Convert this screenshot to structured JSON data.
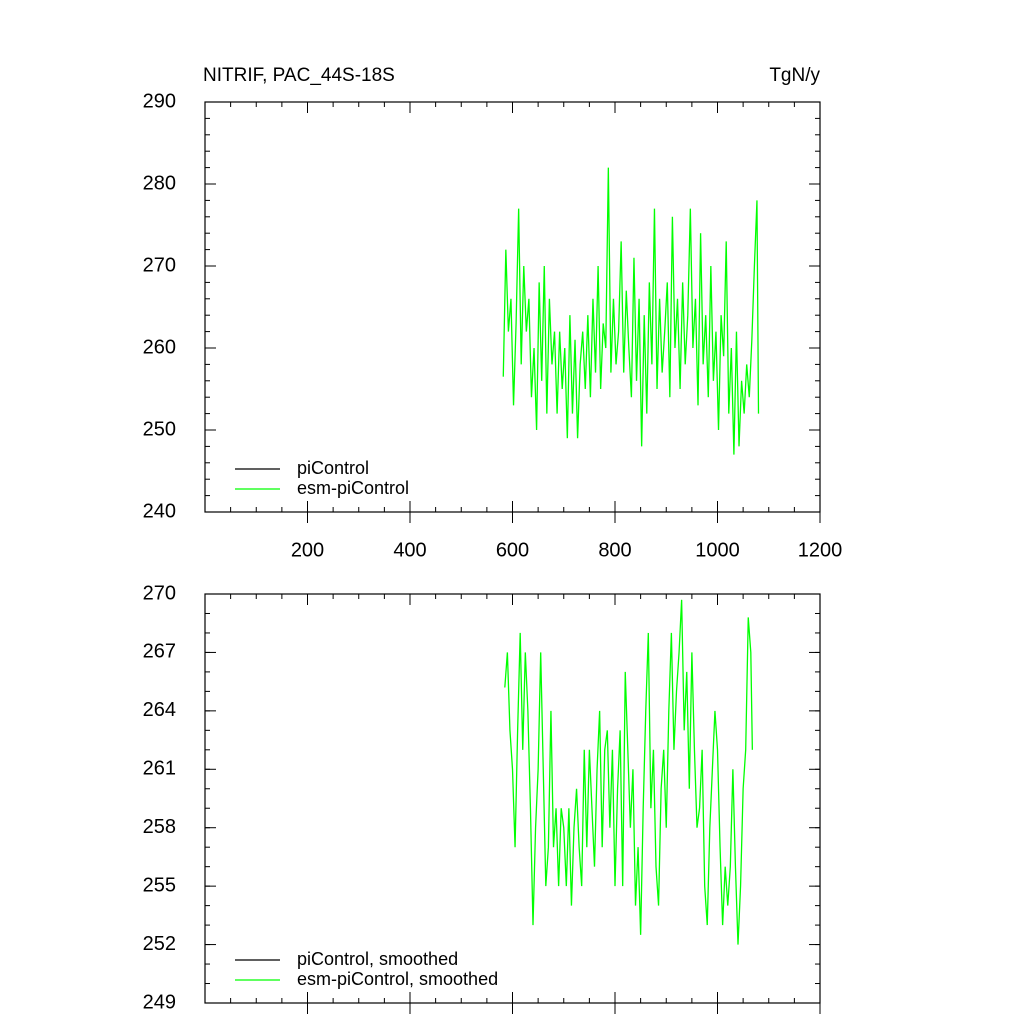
{
  "chart_data": [
    {
      "type": "line",
      "title": "NITRIF, PAC_44S-18S",
      "units": "TgN/y",
      "legend": "lower left",
      "xlim": [
        0,
        1200
      ],
      "xticks": [
        200,
        400,
        600,
        800,
        1000,
        1200
      ],
      "ylim": [
        240,
        290
      ],
      "yticks": [
        240,
        250,
        260,
        270,
        280,
        290
      ],
      "series": [
        {
          "name": "piControl",
          "color": "#000000",
          "x": [],
          "values": []
        },
        {
          "name": "esm-piControl",
          "color": "#00ff00",
          "x": [
            582,
            587,
            592,
            597,
            602,
            607,
            612,
            617,
            622,
            627,
            632,
            637,
            642,
            647,
            652,
            657,
            662,
            667,
            672,
            677,
            682,
            687,
            692,
            697,
            702,
            707,
            712,
            717,
            722,
            727,
            732,
            737,
            742,
            747,
            752,
            757,
            762,
            767,
            772,
            777,
            782,
            787,
            792,
            797,
            802,
            807,
            812,
            817,
            822,
            827,
            832,
            837,
            842,
            847,
            852,
            857,
            862,
            867,
            872,
            877,
            882,
            887,
            892,
            897,
            902,
            907,
            912,
            917,
            922,
            927,
            932,
            937,
            942,
            947,
            952,
            957,
            962,
            967,
            972,
            977,
            982,
            987,
            992,
            997,
            1002,
            1007,
            1012,
            1017,
            1022,
            1027,
            1032,
            1037,
            1042,
            1047,
            1052,
            1057,
            1062,
            1067,
            1072,
            1077,
            1080
          ],
          "values": [
            256.5,
            272,
            262,
            266,
            253,
            263,
            277,
            258,
            270,
            262,
            266,
            254,
            260,
            250,
            268,
            256,
            270,
            252,
            266,
            258,
            262,
            252,
            262,
            255,
            260,
            249,
            264,
            252,
            261,
            249,
            258,
            262,
            255,
            264,
            254,
            266,
            257,
            270,
            255,
            263,
            260,
            282,
            257,
            266,
            258,
            262,
            273,
            257,
            267,
            260,
            254,
            271,
            256,
            266,
            248,
            264,
            252,
            268,
            258,
            277,
            255,
            266,
            257,
            262,
            268,
            254,
            276,
            260,
            266,
            255,
            268,
            258,
            264,
            277,
            260,
            266,
            253,
            274,
            258,
            264,
            254,
            270,
            256,
            262,
            250,
            264,
            259,
            273,
            252,
            260,
            247,
            262,
            248,
            256,
            252,
            258,
            254,
            261,
            270,
            278,
            252
          ]
        }
      ]
    },
    {
      "type": "line",
      "legend": "lower left",
      "xlim": [
        0,
        1200
      ],
      "ylim": [
        249,
        270
      ],
      "yticks": [
        249,
        252,
        255,
        258,
        261,
        264,
        267,
        270
      ],
      "series": [
        {
          "name": "piControl, smoothed",
          "color": "#000000",
          "x": [],
          "values": []
        },
        {
          "name": "esm-piControl, smoothed",
          "color": "#00ff00",
          "x": [
            585,
            590,
            595,
            600,
            605,
            610,
            615,
            620,
            625,
            630,
            635,
            640,
            645,
            650,
            655,
            660,
            665,
            670,
            675,
            680,
            685,
            690,
            695,
            700,
            705,
            710,
            715,
            720,
            725,
            730,
            735,
            740,
            745,
            750,
            755,
            760,
            765,
            770,
            775,
            780,
            785,
            790,
            795,
            800,
            805,
            810,
            815,
            820,
            825,
            830,
            835,
            840,
            845,
            850,
            855,
            860,
            865,
            870,
            875,
            880,
            885,
            890,
            895,
            900,
            905,
            910,
            915,
            920,
            925,
            930,
            935,
            940,
            945,
            950,
            955,
            960,
            965,
            970,
            975,
            980,
            985,
            990,
            995,
            1000,
            1005,
            1010,
            1015,
            1020,
            1025,
            1030,
            1035,
            1040,
            1045,
            1050,
            1055,
            1060,
            1065,
            1068
          ],
          "values": [
            265.2,
            267,
            263,
            261,
            257,
            263,
            268,
            262,
            267,
            264,
            259,
            253,
            258,
            261,
            267,
            261,
            255,
            257,
            264,
            257,
            259,
            255,
            259,
            258,
            255,
            259,
            254,
            258,
            260,
            257,
            255,
            262,
            257,
            262,
            259,
            256,
            261,
            264,
            257,
            262,
            263,
            258,
            262,
            255,
            260,
            263,
            255,
            266,
            262,
            258,
            261,
            254,
            257,
            252.5,
            259,
            264,
            268,
            259,
            262,
            256,
            254,
            260,
            262,
            258,
            264,
            268,
            262,
            265,
            267,
            269.7,
            263,
            266,
            260,
            267,
            262,
            258,
            259,
            262,
            255,
            253,
            258,
            261,
            264,
            262,
            257,
            253,
            256,
            254,
            256,
            261,
            256,
            252,
            255,
            260,
            262,
            268.8,
            267,
            262
          ]
        }
      ]
    }
  ]
}
